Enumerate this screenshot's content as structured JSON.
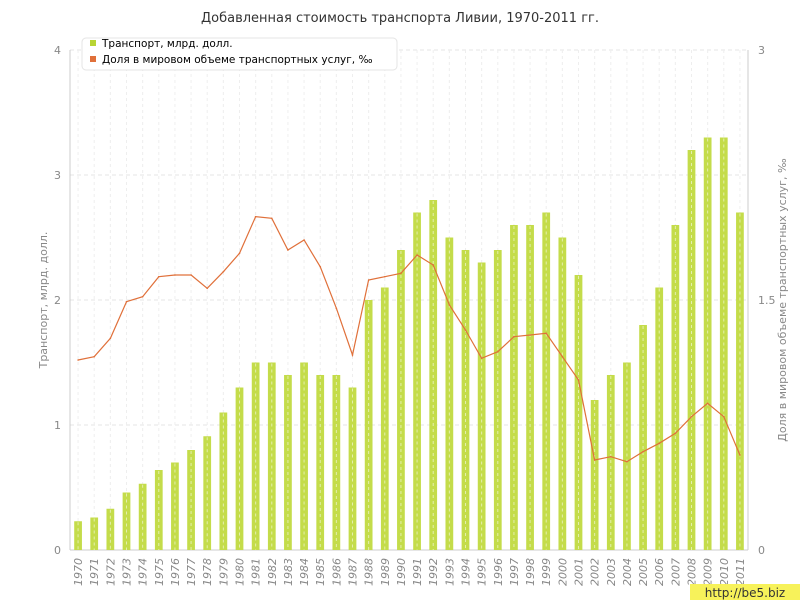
{
  "chart_data": {
    "type": "bar",
    "title": "Добавленная стоимость транспорта Ливии, 1970-2011 гг.",
    "ylabel_left": "Транспорт, млрд. долл.",
    "ylabel_right": "Доля в мировом объеме транспортных услуг, ‰",
    "ylim_left": [
      0,
      4
    ],
    "ylim_right": [
      0,
      3
    ],
    "yticks_left": [
      "0",
      "1",
      "2",
      "3",
      "4"
    ],
    "yticks_right": [
      "0",
      "1.5",
      "3"
    ],
    "grid": true,
    "legend_position": "top-left",
    "categories": [
      "1970",
      "1971",
      "1972",
      "1973",
      "1974",
      "1975",
      "1976",
      "1977",
      "1978",
      "1979",
      "1980",
      "1981",
      "1982",
      "1983",
      "1984",
      "1985",
      "1986",
      "1987",
      "1988",
      "1989",
      "1990",
      "1991",
      "1992",
      "1993",
      "1994",
      "1995",
      "1996",
      "1997",
      "1998",
      "1999",
      "2000",
      "2001",
      "2002",
      "2003",
      "2004",
      "2005",
      "2006",
      "2007",
      "2008",
      "2009",
      "2010",
      "2011"
    ],
    "series": [
      {
        "name": "Транспорт, млрд. долл.",
        "type": "bar",
        "axis": "left",
        "color": "#c4dc4a",
        "values": [
          0.23,
          0.26,
          0.33,
          0.46,
          0.53,
          0.64,
          0.7,
          0.8,
          0.91,
          1.1,
          1.3,
          1.5,
          1.5,
          1.4,
          1.5,
          1.4,
          1.4,
          1.3,
          2.0,
          2.1,
          2.4,
          2.7,
          2.8,
          2.5,
          2.4,
          2.3,
          2.4,
          2.6,
          2.6,
          2.7,
          2.5,
          2.2,
          1.2,
          1.4,
          1.5,
          1.8,
          2.1,
          2.6,
          3.2,
          3.3,
          3.3,
          2.7
        ]
      },
      {
        "name": "Доля в мировом объеме транспортных услуг, ‰",
        "type": "line",
        "axis": "right",
        "color": "#e0703a",
        "values": [
          1.14,
          1.16,
          1.27,
          1.49,
          1.52,
          1.64,
          1.65,
          1.65,
          1.57,
          1.67,
          1.78,
          2.0,
          1.99,
          1.8,
          1.86,
          1.7,
          1.45,
          1.17,
          1.62,
          1.64,
          1.66,
          1.77,
          1.71,
          1.47,
          1.32,
          1.15,
          1.19,
          1.28,
          1.29,
          1.3,
          1.16,
          1.02,
          0.54,
          0.56,
          0.53,
          0.59,
          0.64,
          0.7,
          0.8,
          0.88,
          0.8,
          0.57
        ]
      }
    ]
  },
  "watermark": "http://be5.biz"
}
